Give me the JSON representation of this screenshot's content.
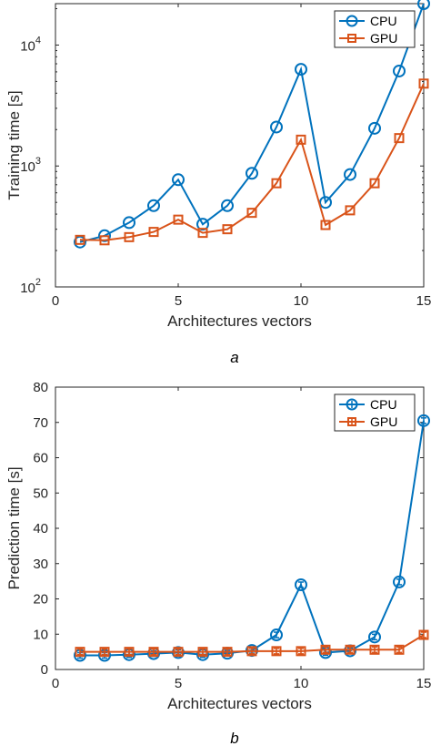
{
  "colors": {
    "cpu": "#0072BD",
    "gpu": "#D95319",
    "axis": "#262626"
  },
  "chart_data": [
    {
      "type": "line",
      "caption": "a",
      "xlabel": "Architectures vectors",
      "ylabel": "Training time [s]",
      "yscale": "log",
      "xlim": [
        0,
        15
      ],
      "ylim": [
        100,
        22000
      ],
      "xticks": [
        0,
        5,
        10,
        15
      ],
      "yticks": [
        100,
        1000,
        10000
      ],
      "ytick_base": "10",
      "ytick_exps": [
        "2",
        "3",
        "4"
      ],
      "legend_position": "top-right",
      "x": [
        1,
        2,
        3,
        4,
        5,
        6,
        7,
        8,
        9,
        10,
        11,
        12,
        13,
        14,
        15
      ],
      "series": [
        {
          "name": "CPU",
          "marker": "circle",
          "values": [
            235,
            265,
            340,
            470,
            770,
            330,
            470,
            870,
            2100,
            6300,
            500,
            850,
            2050,
            6100,
            22000
          ]
        },
        {
          "name": "GPU",
          "marker": "square",
          "values": [
            245,
            243,
            258,
            285,
            360,
            280,
            300,
            410,
            720,
            1650,
            325,
            430,
            720,
            1700,
            4800
          ]
        }
      ]
    },
    {
      "type": "line",
      "caption": "b",
      "xlabel": "Architectures vectors",
      "ylabel": "Prediction time [s]",
      "yscale": "linear",
      "xlim": [
        0,
        15
      ],
      "ylim": [
        0,
        80
      ],
      "xticks": [
        0,
        5,
        10,
        15
      ],
      "yticks": [
        0,
        10,
        20,
        30,
        40,
        50,
        60,
        70,
        80
      ],
      "legend_position": "top-right",
      "x": [
        1,
        2,
        3,
        4,
        5,
        6,
        7,
        8,
        9,
        10,
        11,
        12,
        13,
        14,
        15
      ],
      "series": [
        {
          "name": "CPU",
          "marker": "circle",
          "error_bars": true,
          "values": [
            4.0,
            4.0,
            4.2,
            4.5,
            4.8,
            4.2,
            4.6,
            5.4,
            9.8,
            24.0,
            4.8,
            5.3,
            9.2,
            24.8,
            70.5
          ]
        },
        {
          "name": "GPU",
          "marker": "square",
          "error_bars": true,
          "values": [
            5.0,
            5.0,
            5.0,
            5.0,
            5.0,
            5.0,
            5.0,
            5.2,
            5.2,
            5.2,
            5.6,
            5.6,
            5.6,
            5.6,
            9.8
          ]
        }
      ]
    }
  ]
}
